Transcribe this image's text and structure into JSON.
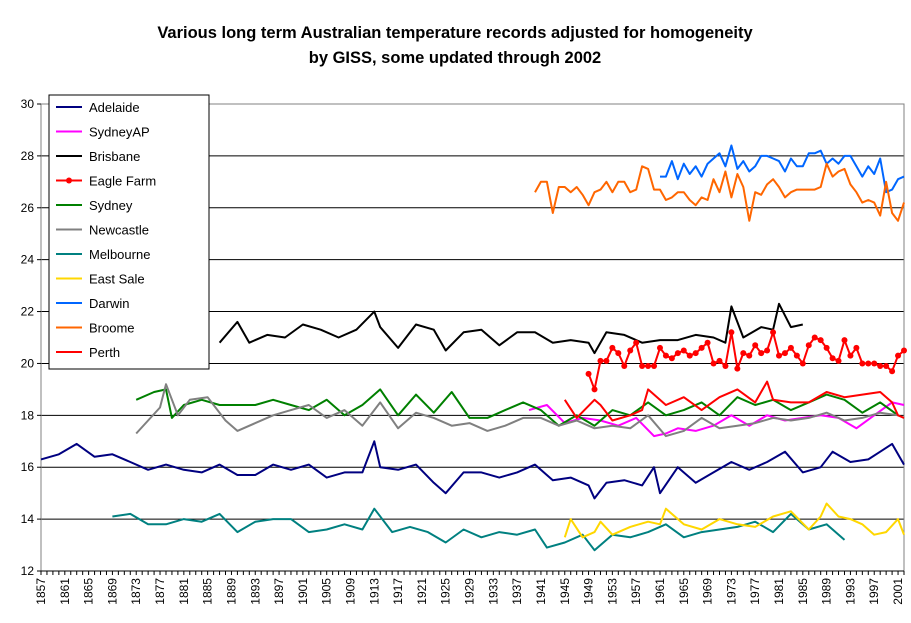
{
  "chart_data": {
    "type": "line",
    "title_lines": [
      "Various long term Australian temperature records adjusted for homogeneity",
      "by GISS, some updated through 2002"
    ],
    "xlabel": "",
    "ylabel": "",
    "ylim": [
      12,
      30
    ],
    "xlim": [
      1857,
      2002
    ],
    "y_ticks": [
      "12",
      "14",
      "16",
      "18",
      "20",
      "22",
      "24",
      "26",
      "28",
      "30"
    ],
    "x_ticks": [
      "1857",
      "1861",
      "1865",
      "1869",
      "1873",
      "1877",
      "1881",
      "1885",
      "1889",
      "1893",
      "1897",
      "1901",
      "1905",
      "1909",
      "1913",
      "1917",
      "1921",
      "1925",
      "1929",
      "1933",
      "1937",
      "1941",
      "1945",
      "1949",
      "1953",
      "1957",
      "1961",
      "1965",
      "1969",
      "1973",
      "1977",
      "1981",
      "1985",
      "1989",
      "1993",
      "1997",
      "2001"
    ],
    "grid": "horizontal",
    "legend_position": "top-left",
    "series": [
      {
        "name": "Adelaide",
        "color": "#000080",
        "marker": false,
        "x": [
          1857,
          1860,
          1863,
          1866,
          1869,
          1872,
          1875,
          1878,
          1881,
          1884,
          1887,
          1890,
          1893,
          1896,
          1899,
          1902,
          1905,
          1908,
          1911,
          1913,
          1914,
          1917,
          1920,
          1923,
          1925,
          1928,
          1931,
          1934,
          1937,
          1940,
          1943,
          1946,
          1949,
          1950,
          1952,
          1955,
          1958,
          1960,
          1961,
          1964,
          1967,
          1970,
          1973,
          1976,
          1979,
          1982,
          1985,
          1988,
          1990,
          1993,
          1996,
          1998,
          2000,
          2002
        ],
        "y": [
          16.3,
          16.5,
          16.9,
          16.4,
          16.5,
          16.2,
          15.9,
          16.1,
          15.9,
          15.8,
          16.1,
          15.7,
          15.7,
          16.1,
          15.9,
          16.1,
          15.6,
          15.8,
          15.8,
          17.0,
          16.0,
          15.9,
          16.1,
          15.4,
          15.0,
          15.8,
          15.8,
          15.6,
          15.8,
          16.1,
          15.5,
          15.6,
          15.3,
          14.8,
          15.4,
          15.5,
          15.3,
          16.0,
          15.0,
          16.0,
          15.4,
          15.8,
          16.2,
          15.9,
          16.2,
          16.6,
          15.8,
          16.0,
          16.6,
          16.2,
          16.3,
          16.6,
          16.9,
          16.1
        ]
      },
      {
        "name": "SydneyAP",
        "color": "#FF00FF",
        "marker": false,
        "x": [
          1939,
          1942,
          1945,
          1948,
          1951,
          1954,
          1957,
          1960,
          1962,
          1964,
          1967,
          1970,
          1973,
          1976,
          1979,
          1982,
          1985,
          1988,
          1991,
          1994,
          1997,
          2000,
          2002
        ],
        "y": [
          18.2,
          18.4,
          17.7,
          17.9,
          17.8,
          17.6,
          17.9,
          17.2,
          17.3,
          17.5,
          17.4,
          17.6,
          18.0,
          17.6,
          18.0,
          17.8,
          17.9,
          18.0,
          17.9,
          17.5,
          18.0,
          18.5,
          18.4
        ]
      },
      {
        "name": "Brisbane",
        "color": "#000000",
        "marker": false,
        "x": [
          1887,
          1890,
          1892,
          1895,
          1898,
          1901,
          1904,
          1907,
          1910,
          1913,
          1914,
          1917,
          1920,
          1923,
          1925,
          1928,
          1931,
          1934,
          1937,
          1940,
          1943,
          1946,
          1949,
          1950,
          1952,
          1955,
          1958,
          1961,
          1964,
          1967,
          1970,
          1972,
          1973,
          1975,
          1978,
          1980,
          1981,
          1983,
          1985
        ],
        "y": [
          20.8,
          21.6,
          20.8,
          21.1,
          21.0,
          21.5,
          21.3,
          21.0,
          21.3,
          22.0,
          21.4,
          20.6,
          21.5,
          21.3,
          20.5,
          21.2,
          21.3,
          20.7,
          21.2,
          21.2,
          20.8,
          20.9,
          20.8,
          20.4,
          21.2,
          21.1,
          20.8,
          20.9,
          20.9,
          21.1,
          21.0,
          20.8,
          22.2,
          21.0,
          21.4,
          21.3,
          22.3,
          21.4,
          21.5
        ]
      },
      {
        "name": "Eagle Farm",
        "color": "#FF0000",
        "marker": true,
        "x": [
          1949,
          1950,
          1951,
          1952,
          1953,
          1954,
          1955,
          1956,
          1957,
          1958,
          1959,
          1960,
          1961,
          1962,
          1963,
          1964,
          1965,
          1966,
          1967,
          1968,
          1969,
          1970,
          1971,
          1972,
          1973,
          1974,
          1975,
          1976,
          1977,
          1978,
          1979,
          1980,
          1981,
          1982,
          1983,
          1984,
          1985,
          1986,
          1987,
          1988,
          1989,
          1990,
          1991,
          1992,
          1993,
          1994,
          1995,
          1996,
          1997,
          1998,
          1999,
          2000,
          2001,
          2002
        ],
        "y": [
          19.6,
          19.0,
          20.1,
          20.1,
          20.6,
          20.4,
          19.9,
          20.5,
          20.8,
          19.9,
          19.9,
          19.9,
          20.6,
          20.3,
          20.2,
          20.4,
          20.5,
          20.3,
          20.4,
          20.6,
          20.8,
          20.0,
          20.1,
          19.9,
          21.2,
          19.8,
          20.4,
          20.3,
          20.7,
          20.4,
          20.5,
          21.2,
          20.3,
          20.4,
          20.6,
          20.3,
          20.0,
          20.7,
          21.0,
          20.9,
          20.6,
          20.2,
          20.1,
          20.9,
          20.3,
          20.6,
          20.0,
          20.0,
          20.0,
          19.9,
          19.9,
          19.7,
          20.3,
          20.5
        ]
      },
      {
        "name": "Sydney",
        "color": "#008000",
        "marker": false,
        "x": [
          1873,
          1876,
          1878,
          1879,
          1881,
          1884,
          1887,
          1890,
          1893,
          1896,
          1899,
          1902,
          1905,
          1908,
          1911,
          1914,
          1917,
          1920,
          1923,
          1926,
          1929,
          1932,
          1935,
          1938,
          1941,
          1944,
          1947,
          1950,
          1953,
          1956,
          1959,
          1962,
          1965,
          1968,
          1971,
          1974,
          1977,
          1980,
          1983,
          1986,
          1989,
          1992,
          1995,
          1998,
          2001
        ],
        "y": [
          18.6,
          18.9,
          19.0,
          17.9,
          18.4,
          18.6,
          18.4,
          18.4,
          18.4,
          18.6,
          18.4,
          18.2,
          18.6,
          18.0,
          18.4,
          19.0,
          18.0,
          18.8,
          18.1,
          18.9,
          17.9,
          17.9,
          18.2,
          18.5,
          18.2,
          17.6,
          18.0,
          17.6,
          18.2,
          18.0,
          18.5,
          18.0,
          18.2,
          18.5,
          18.0,
          18.7,
          18.4,
          18.6,
          18.2,
          18.5,
          18.8,
          18.6,
          18.1,
          18.5,
          18.0
        ]
      },
      {
        "name": "Newcastle",
        "color": "#808080",
        "marker": false,
        "x": [
          1873,
          1875,
          1877,
          1878,
          1880,
          1882,
          1885,
          1888,
          1890,
          1893,
          1896,
          1899,
          1902,
          1905,
          1908,
          1911,
          1914,
          1917,
          1920,
          1923,
          1926,
          1929,
          1932,
          1935,
          1938,
          1941,
          1944,
          1947,
          1950,
          1953,
          1956,
          1959,
          1962,
          1965,
          1968,
          1971,
          1974,
          1977,
          1980,
          1983,
          1986,
          1989,
          1992,
          1995,
          1998,
          2001
        ],
        "y": [
          17.3,
          17.8,
          18.3,
          19.2,
          18.0,
          18.6,
          18.7,
          17.8,
          17.4,
          17.7,
          18.0,
          18.2,
          18.4,
          17.9,
          18.2,
          17.6,
          18.5,
          17.5,
          18.1,
          17.9,
          17.6,
          17.7,
          17.4,
          17.6,
          17.9,
          17.9,
          17.6,
          17.8,
          17.5,
          17.6,
          17.5,
          18.0,
          17.2,
          17.4,
          17.9,
          17.5,
          17.6,
          17.7,
          17.9,
          17.8,
          17.9,
          18.1,
          17.8,
          17.9,
          18.1,
          18.0
        ]
      },
      {
        "name": "Melbourne",
        "color": "#008080",
        "marker": false,
        "x": [
          1869,
          1872,
          1875,
          1878,
          1881,
          1884,
          1887,
          1890,
          1893,
          1896,
          1899,
          1902,
          1905,
          1908,
          1911,
          1913,
          1916,
          1919,
          1922,
          1925,
          1928,
          1931,
          1934,
          1937,
          1940,
          1942,
          1945,
          1948,
          1950,
          1953,
          1956,
          1959,
          1962,
          1965,
          1968,
          1971,
          1974,
          1977,
          1980,
          1983,
          1986,
          1989,
          1992
        ],
        "y": [
          14.1,
          14.2,
          13.8,
          13.8,
          14.0,
          13.9,
          14.2,
          13.5,
          13.9,
          14.0,
          14.0,
          13.5,
          13.6,
          13.8,
          13.6,
          14.4,
          13.5,
          13.7,
          13.5,
          13.1,
          13.6,
          13.3,
          13.5,
          13.4,
          13.6,
          12.9,
          13.1,
          13.4,
          12.8,
          13.4,
          13.3,
          13.5,
          13.8,
          13.3,
          13.5,
          13.6,
          13.7,
          13.9,
          13.5,
          14.2,
          13.6,
          13.8,
          13.2
        ]
      },
      {
        "name": "East Sale",
        "color": "#FFD700",
        "marker": false,
        "x": [
          1945,
          1946,
          1948,
          1950,
          1951,
          1953,
          1956,
          1959,
          1961,
          1962,
          1965,
          1968,
          1971,
          1974,
          1977,
          1980,
          1983,
          1986,
          1988,
          1989,
          1991,
          1993,
          1995,
          1997,
          1999,
          2001,
          2002
        ],
        "y": [
          13.3,
          14.0,
          13.3,
          13.5,
          13.9,
          13.4,
          13.7,
          13.9,
          13.8,
          14.4,
          13.8,
          13.6,
          14.0,
          13.8,
          13.7,
          14.1,
          14.3,
          13.6,
          14.1,
          14.6,
          14.1,
          14.0,
          13.8,
          13.4,
          13.5,
          14.0,
          13.4
        ]
      },
      {
        "name": "Darwin",
        "color": "#0066FF",
        "marker": false,
        "x": [
          1961,
          1962,
          1963,
          1964,
          1965,
          1966,
          1967,
          1968,
          1969,
          1970,
          1971,
          1972,
          1973,
          1974,
          1975,
          1976,
          1977,
          1978,
          1979,
          1980,
          1981,
          1982,
          1983,
          1984,
          1985,
          1986,
          1987,
          1988,
          1989,
          1990,
          1991,
          1992,
          1993,
          1994,
          1995,
          1996,
          1997,
          1998,
          1999,
          2000,
          2001,
          2002
        ],
        "y": [
          27.2,
          27.2,
          27.8,
          27.1,
          27.7,
          27.3,
          27.6,
          27.2,
          27.7,
          27.9,
          28.1,
          27.6,
          28.4,
          27.5,
          27.8,
          27.4,
          27.6,
          28.0,
          28.0,
          27.9,
          27.8,
          27.4,
          27.9,
          27.6,
          27.6,
          28.1,
          28.1,
          28.2,
          27.7,
          27.9,
          27.7,
          28.0,
          28.0,
          27.6,
          27.2,
          27.6,
          27.3,
          27.9,
          26.6,
          26.7,
          27.1,
          27.2
        ]
      },
      {
        "name": "Broome",
        "color": "#FF6600",
        "marker": false,
        "x": [
          1940,
          1941,
          1942,
          1943,
          1944,
          1945,
          1946,
          1947,
          1948,
          1949,
          1950,
          1951,
          1952,
          1953,
          1954,
          1955,
          1956,
          1957,
          1958,
          1959,
          1960,
          1961,
          1962,
          1963,
          1964,
          1965,
          1966,
          1967,
          1968,
          1969,
          1970,
          1971,
          1972,
          1973,
          1974,
          1975,
          1976,
          1977,
          1978,
          1979,
          1980,
          1981,
          1982,
          1983,
          1984,
          1985,
          1986,
          1987,
          1988,
          1989,
          1990,
          1991,
          1992,
          1993,
          1994,
          1995,
          1996,
          1997,
          1998,
          1999,
          2000,
          2001,
          2002
        ],
        "y": [
          26.6,
          27.0,
          27.0,
          25.8,
          26.8,
          26.8,
          26.6,
          26.8,
          26.5,
          26.1,
          26.6,
          26.7,
          27.0,
          26.6,
          27.0,
          27.0,
          26.6,
          26.7,
          27.6,
          27.5,
          26.7,
          26.7,
          26.3,
          26.4,
          26.6,
          26.6,
          26.3,
          26.1,
          26.4,
          26.3,
          27.1,
          26.6,
          27.4,
          26.4,
          27.3,
          26.8,
          25.5,
          26.6,
          26.5,
          26.9,
          27.1,
          26.8,
          26.4,
          26.6,
          26.7,
          26.7,
          26.7,
          26.7,
          26.8,
          27.7,
          27.2,
          27.4,
          27.5,
          26.9,
          26.6,
          26.2,
          26.3,
          26.2,
          25.7,
          27.0,
          25.8,
          25.5,
          26.2
        ]
      },
      {
        "name": "Perth",
        "color": "#FF0000",
        "marker": false,
        "x": [
          1945,
          1947,
          1950,
          1951,
          1953,
          1956,
          1958,
          1959,
          1962,
          1965,
          1968,
          1971,
          1974,
          1977,
          1979,
          1980,
          1983,
          1986,
          1989,
          1992,
          1995,
          1998,
          2000,
          2001,
          2002
        ],
        "y": [
          18.6,
          17.9,
          18.6,
          18.4,
          17.8,
          18.0,
          18.2,
          19.0,
          18.4,
          18.7,
          18.2,
          18.7,
          19.0,
          18.5,
          19.3,
          18.6,
          18.5,
          18.5,
          18.9,
          18.7,
          18.8,
          18.9,
          18.5,
          18.0,
          17.9
        ]
      }
    ]
  }
}
